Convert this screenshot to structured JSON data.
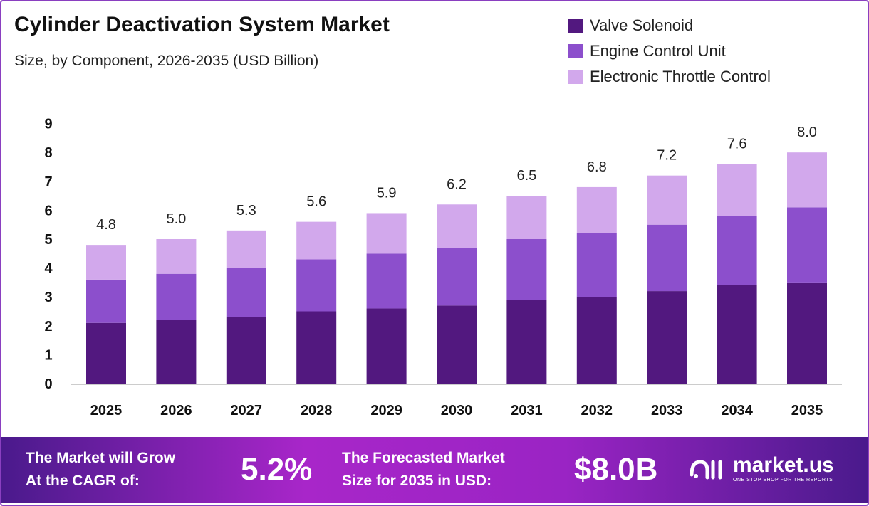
{
  "chart_data": {
    "type": "bar",
    "stacked": true,
    "title": "Cylinder Deactivation System Market",
    "subtitle": "Size, by Component, 2026-2035 (USD Billion)",
    "categories": [
      "2025",
      "2026",
      "2027",
      "2028",
      "2029",
      "2030",
      "2031",
      "2032",
      "2033",
      "2034",
      "2035"
    ],
    "series": [
      {
        "name": "Valve Solenoid",
        "color": "#52187f",
        "values": [
          2.1,
          2.2,
          2.3,
          2.5,
          2.6,
          2.7,
          2.9,
          3.0,
          3.2,
          3.4,
          3.5
        ]
      },
      {
        "name": "Engine Control Unit",
        "color": "#8c4fcc",
        "values": [
          1.5,
          1.6,
          1.7,
          1.8,
          1.9,
          2.0,
          2.1,
          2.2,
          2.3,
          2.4,
          2.6
        ]
      },
      {
        "name": "Electronic Throttle Control",
        "color": "#d2a8ec",
        "values": [
          1.2,
          1.2,
          1.3,
          1.3,
          1.4,
          1.5,
          1.5,
          1.6,
          1.7,
          1.8,
          1.9
        ]
      }
    ],
    "totals": [
      "4.8",
      "5.0",
      "5.3",
      "5.6",
      "5.9",
      "6.2",
      "6.5",
      "6.8",
      "7.2",
      "7.6",
      "8.0"
    ],
    "yticks": [
      "0",
      "1",
      "2",
      "3",
      "4",
      "5",
      "6",
      "7",
      "8",
      "9"
    ],
    "ylim": [
      0,
      9
    ],
    "grid": false,
    "legend": "top-right"
  },
  "footer": {
    "cagr_label_1": "The Market will Grow",
    "cagr_label_2": "At the CAGR of:",
    "cagr_value": "5.2%",
    "size_label_1": "The Forecasted Market",
    "size_label_2": "Size for 2035 in USD:",
    "size_value": "$8.0B",
    "logo_name": "market.us",
    "logo_tagline": "ONE STOP SHOP FOR THE REPORTS"
  }
}
